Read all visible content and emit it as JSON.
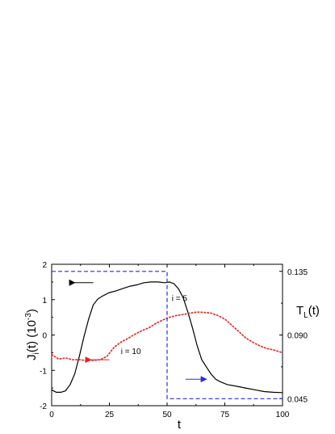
{
  "chart_data": {
    "type": "line",
    "xlabel": "t",
    "ylabel": {
      "main": "J",
      "sub": "i",
      "tail": "(t) (10",
      "sup": "-3",
      "close": ")"
    },
    "y2label": {
      "main": "T",
      "sub": "L",
      "tail": "(t)"
    },
    "xlim": [
      0,
      100
    ],
    "ylim": [
      -2,
      2
    ],
    "y2lim": [
      0.04,
      0.14
    ],
    "xticks": [
      0,
      25,
      50,
      75,
      100
    ],
    "xtick_labels": [
      "0",
      "25",
      "50",
      "75",
      "100"
    ],
    "yticks": [
      -2,
      -1,
      0,
      1,
      2
    ],
    "ytick_labels": [
      "-2",
      "-1",
      "0",
      "1",
      "2"
    ],
    "y2ticks": [
      0.045,
      0.09,
      0.135
    ],
    "y2tick_labels": [
      "0.045",
      "0.090",
      "0.135"
    ],
    "series": [
      {
        "name": "i = 5",
        "axis": "left",
        "color": "#000000",
        "style": "solid",
        "x": [
          0,
          2,
          4,
          6,
          8,
          10,
          12,
          14,
          16,
          18,
          20,
          22,
          25,
          28,
          31,
          34,
          37,
          40,
          43,
          46,
          49,
          51,
          53,
          55,
          57,
          59,
          61,
          63,
          65,
          67,
          69,
          71,
          73,
          76,
          80,
          84,
          88,
          92,
          96,
          100
        ],
        "y": [
          -1.55,
          -1.62,
          -1.62,
          -1.58,
          -1.4,
          -1.1,
          -0.6,
          -0.05,
          0.45,
          0.85,
          1.02,
          1.1,
          1.2,
          1.25,
          1.32,
          1.38,
          1.42,
          1.48,
          1.5,
          1.5,
          1.48,
          1.5,
          1.45,
          1.3,
          1.05,
          0.65,
          0.2,
          -0.3,
          -0.7,
          -0.9,
          -1.1,
          -1.25,
          -1.32,
          -1.4,
          -1.45,
          -1.5,
          -1.55,
          -1.6,
          -1.62,
          -1.63
        ]
      },
      {
        "name": "i = 10",
        "axis": "left",
        "color": "#e8201c",
        "style": "dotted",
        "x": [
          0,
          3,
          6,
          9,
          12,
          15,
          18,
          21,
          24,
          27,
          30,
          33,
          36,
          39,
          42,
          45,
          48,
          51,
          54,
          57,
          60,
          63,
          66,
          69,
          72,
          75,
          78,
          81,
          84,
          87,
          90,
          93,
          96,
          100
        ],
        "y": [
          -0.55,
          -0.68,
          -0.65,
          -0.7,
          -0.7,
          -0.72,
          -0.72,
          -0.7,
          -0.6,
          -0.35,
          -0.2,
          -0.1,
          0.02,
          0.12,
          0.2,
          0.32,
          0.42,
          0.5,
          0.55,
          0.58,
          0.62,
          0.65,
          0.64,
          0.62,
          0.55,
          0.45,
          0.28,
          0.1,
          -0.08,
          -0.2,
          -0.3,
          -0.38,
          -0.42,
          -0.5
        ]
      },
      {
        "name": "T_L(t)",
        "axis": "right",
        "color": "#2c2ce0",
        "style": "dashed",
        "x": [
          0,
          50,
          50,
          100
        ],
        "y": [
          0.135,
          0.135,
          0.045,
          0.045
        ]
      }
    ],
    "annotations": [
      {
        "text": "i = 5",
        "x": 52,
        "y": 1.05,
        "arrow_from": [
          18,
          1.48
        ],
        "arrow_to": [
          10,
          1.48
        ],
        "color": "#000000"
      },
      {
        "text": "i = 10",
        "x": 30,
        "y": -0.45,
        "arrow_from": [
          25,
          -0.7
        ],
        "arrow_to": [
          17,
          -0.7
        ],
        "color": "#e8201c"
      },
      {
        "text": "",
        "arrow_from": [
          58,
          -1.25
        ],
        "arrow_to": [
          67,
          -1.25
        ],
        "color": "#2c2ce0"
      }
    ]
  }
}
